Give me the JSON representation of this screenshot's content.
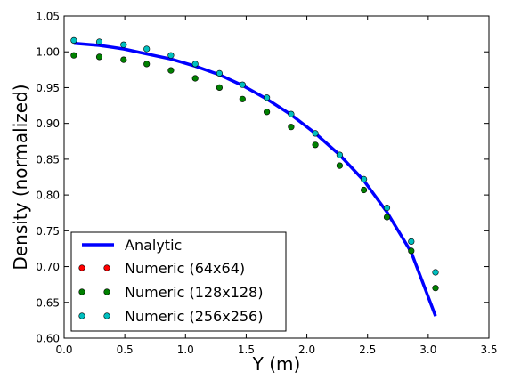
{
  "chart_data": {
    "type": "line",
    "title": "",
    "xlabel": "Y (m)",
    "ylabel": "Density (normalized)",
    "xlim": [
      0.0,
      3.5
    ],
    "ylim": [
      0.6,
      1.05
    ],
    "xticks": [
      "0.0",
      "0.5",
      "1.0",
      "1.5",
      "2.0",
      "2.5",
      "3.0",
      "3.5"
    ],
    "yticks": [
      "0.60",
      "0.65",
      "0.70",
      "0.75",
      "0.80",
      "0.85",
      "0.90",
      "0.95",
      "1.00",
      "1.05"
    ],
    "grid": false,
    "legend_position": "lower-left",
    "series": [
      {
        "name": "Analytic",
        "kind": "line",
        "color": "#0000ff",
        "x": [
          0.08,
          0.29,
          0.49,
          0.68,
          0.88,
          1.08,
          1.28,
          1.47,
          1.67,
          1.87,
          2.07,
          2.27,
          2.47,
          2.66,
          2.86,
          3.06
        ],
        "y": [
          1.012,
          1.009,
          1.004,
          0.997,
          0.99,
          0.98,
          0.968,
          0.953,
          0.934,
          0.912,
          0.886,
          0.856,
          0.82,
          0.776,
          0.72,
          0.631
        ]
      },
      {
        "name": "Numeric (64x64)",
        "kind": "scatter",
        "color": "#ff0000",
        "x": [],
        "y": []
      },
      {
        "name": "Numeric (128x128)",
        "kind": "scatter",
        "color": "#008000",
        "x": [
          0.08,
          0.29,
          0.49,
          0.68,
          0.88,
          1.08,
          1.28,
          1.47,
          1.67,
          1.87,
          2.07,
          2.27,
          2.47,
          2.66,
          2.86,
          3.06
        ],
        "y": [
          0.995,
          0.993,
          0.989,
          0.983,
          0.974,
          0.963,
          0.95,
          0.934,
          0.916,
          0.895,
          0.87,
          0.841,
          0.807,
          0.769,
          0.722,
          0.67
        ]
      },
      {
        "name": "Numeric (256x256)",
        "kind": "scatter",
        "color": "#00bfbf",
        "x": [
          0.08,
          0.29,
          0.49,
          0.68,
          0.88,
          1.08,
          1.28,
          1.47,
          1.67,
          1.87,
          2.07,
          2.27,
          2.47,
          2.66,
          2.86,
          3.06
        ],
        "y": [
          1.016,
          1.014,
          1.01,
          1.004,
          0.995,
          0.983,
          0.97,
          0.954,
          0.936,
          0.913,
          0.886,
          0.856,
          0.822,
          0.782,
          0.735,
          0.692
        ]
      }
    ]
  }
}
